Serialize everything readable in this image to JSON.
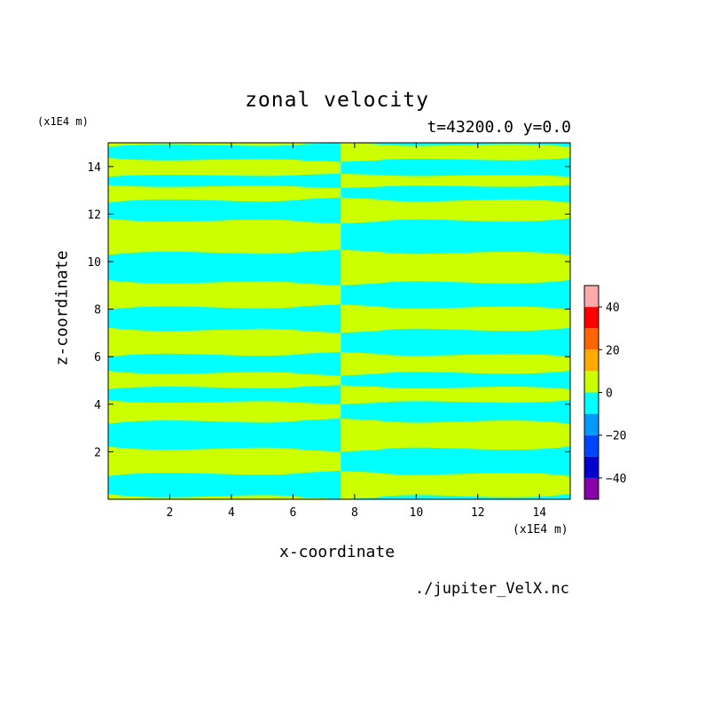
{
  "chart_data": {
    "type": "heatmap",
    "title": "zonal velocity",
    "subtitle": "t=43200.0 y=0.0",
    "xlabel": "x-coordinate",
    "ylabel": "z-coordinate",
    "x_unit_label": "(x1E4 m)",
    "y_unit_label": "(x1E4 m)",
    "source": "./jupiter_VelX.nc",
    "xlim": [
      0,
      15
    ],
    "ylim": [
      0,
      15
    ],
    "x_ticks": [
      2,
      4,
      6,
      8,
      10,
      12,
      14
    ],
    "y_ticks": [
      2,
      4,
      6,
      8,
      10,
      12,
      14
    ],
    "x_tick_labels": [
      "2",
      "4",
      "6",
      "8",
      "10",
      "12",
      "14"
    ],
    "y_tick_labels": [
      "2",
      "4",
      "6",
      "8",
      "10",
      "12",
      "14"
    ],
    "field_description": {
      "split_x": 7.55,
      "background_positive_color": "#ccff00",
      "background_negative_color": "#00ffff",
      "left_half_negative_bands_z": [
        [
          0,
          1.2
        ],
        [
          2.0,
          3.4
        ],
        [
          4.0,
          4.8
        ],
        [
          5.2,
          6.2
        ],
        [
          7.0,
          8.2
        ],
        [
          9.0,
          10.5
        ],
        [
          11.6,
          12.7
        ],
        [
          13.1,
          13.7
        ],
        [
          14.2,
          15
        ]
      ],
      "right_half_mirror": true
    },
    "colorbar": {
      "levels": [
        -50,
        -40,
        -30,
        -20,
        -10,
        0,
        10,
        20,
        30,
        40,
        50
      ],
      "colors": [
        "#8800aa",
        "#0000cc",
        "#0044ff",
        "#0099ff",
        "#00ffff",
        "#ccff00",
        "#ffaa00",
        "#ff6600",
        "#ff0000",
        "#ffaaaa"
      ],
      "tick_values": [
        -40,
        -20,
        0,
        20,
        40
      ],
      "tick_labels": [
        "−40",
        "−20",
        "0",
        "20",
        "40"
      ]
    }
  }
}
